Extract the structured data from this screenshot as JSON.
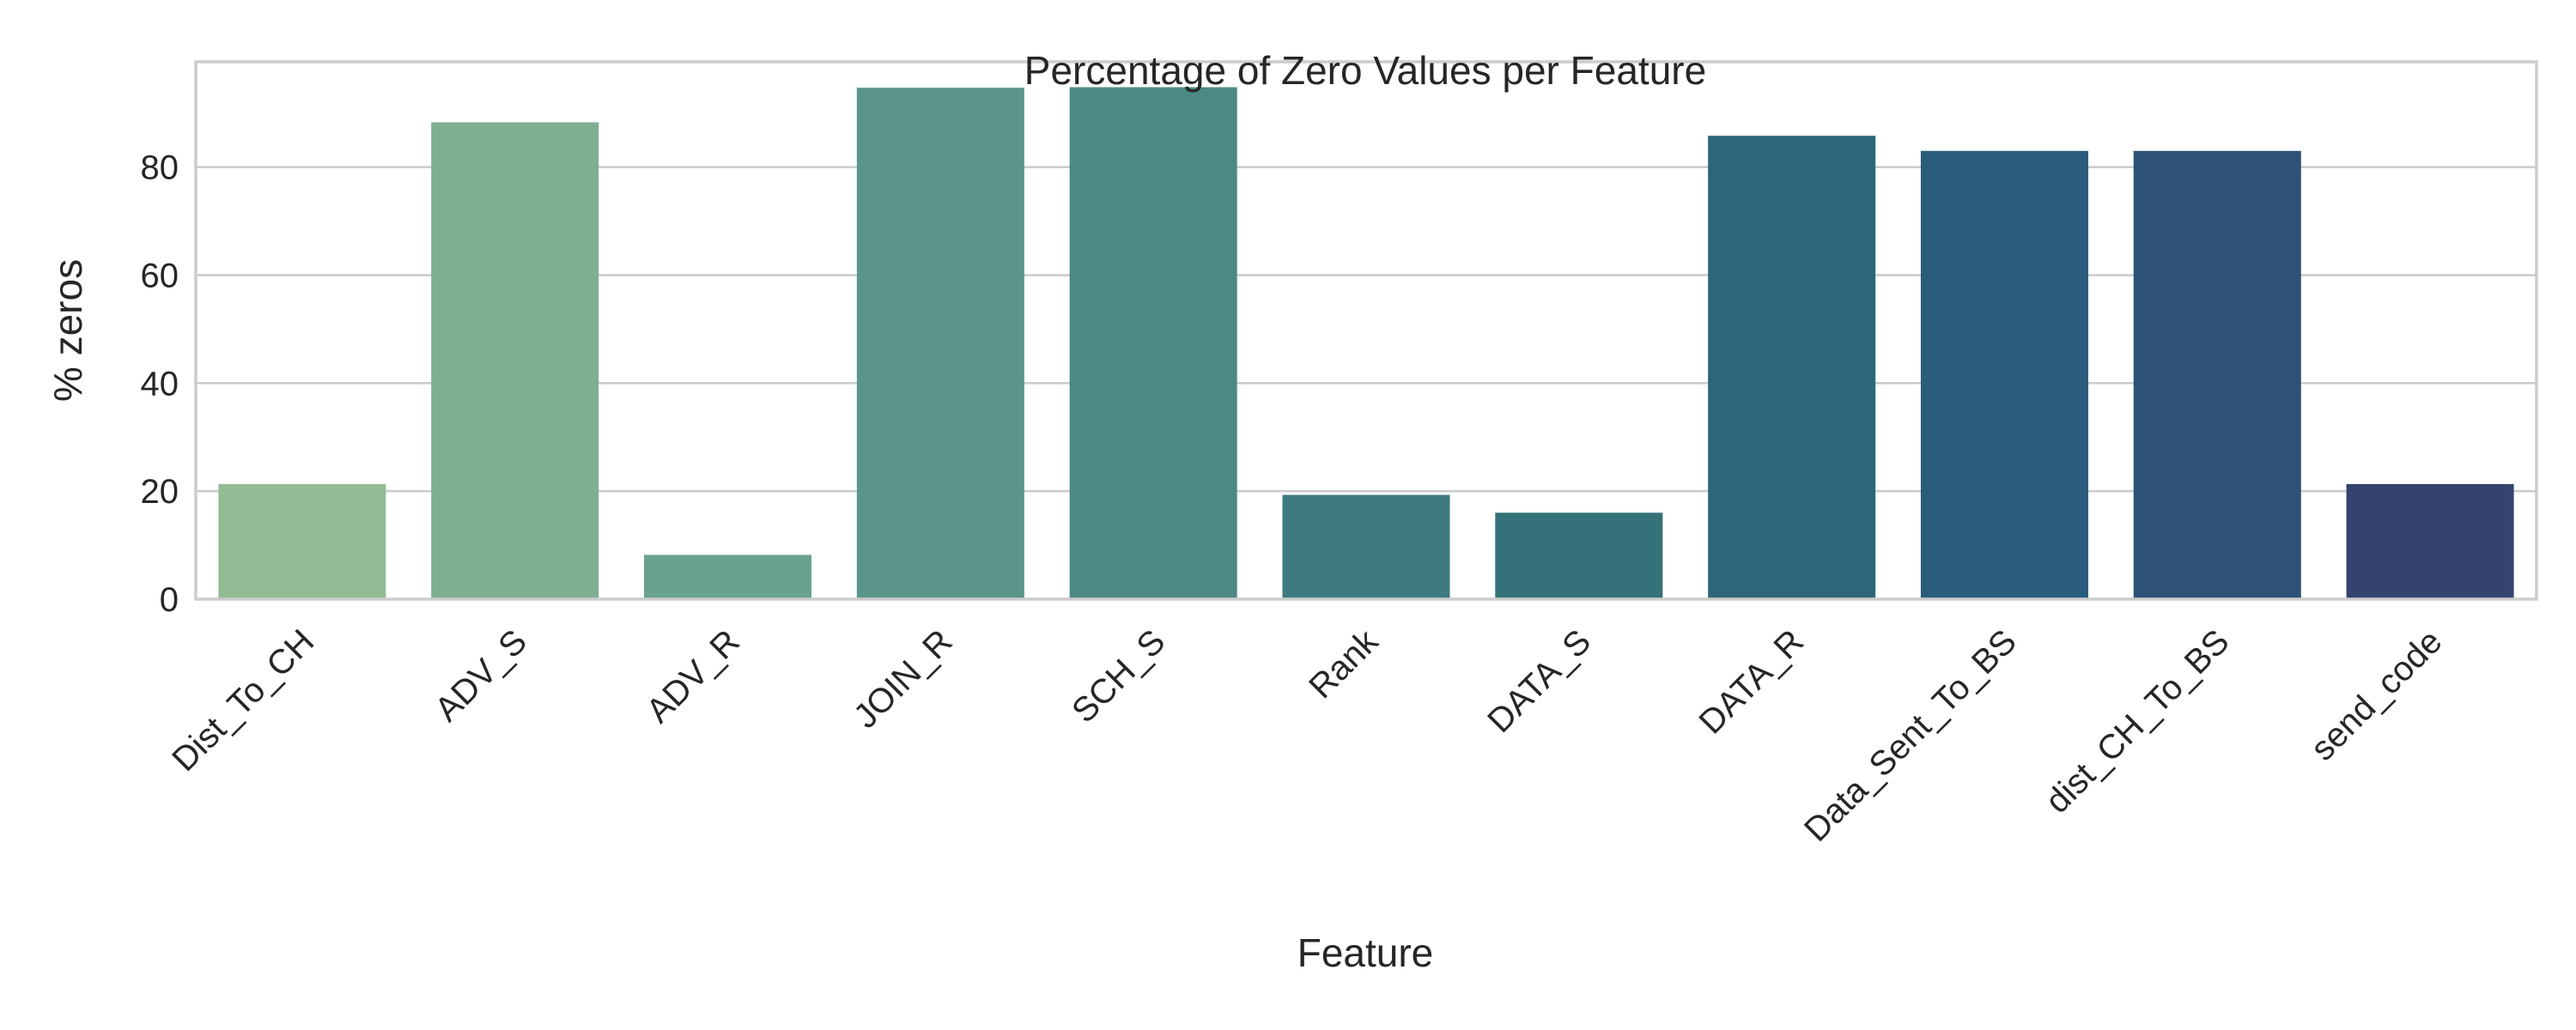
{
  "chart_data": {
    "type": "bar",
    "title": "Percentage of Zero Values per Feature",
    "xlabel": "Feature",
    "ylabel": "% zeros",
    "categories": [
      "Dist_To_CH",
      "ADV_S",
      "ADV_R",
      "JOIN_R",
      "SCH_S",
      "Rank",
      "DATA_S",
      "DATA_R",
      "Data_Sent_To_BS",
      "dist_CH_To_BS",
      "send_code"
    ],
    "values": [
      21.3,
      88.3,
      8.2,
      94.7,
      94.8,
      19.3,
      16.0,
      85.8,
      83.0,
      83.0,
      21.3
    ],
    "colors": [
      "#93bb94",
      "#7eaf91",
      "#6aa38d",
      "#5b9589",
      "#4c8985",
      "#3d7b80",
      "#347179",
      "#2d6679",
      "#2b5c7b",
      "#2e5177",
      "#33436d"
    ],
    "yticks": [
      0,
      20,
      40,
      60,
      80
    ],
    "ylim": [
      0,
      99.5
    ],
    "grid": "y",
    "legend": "none"
  }
}
